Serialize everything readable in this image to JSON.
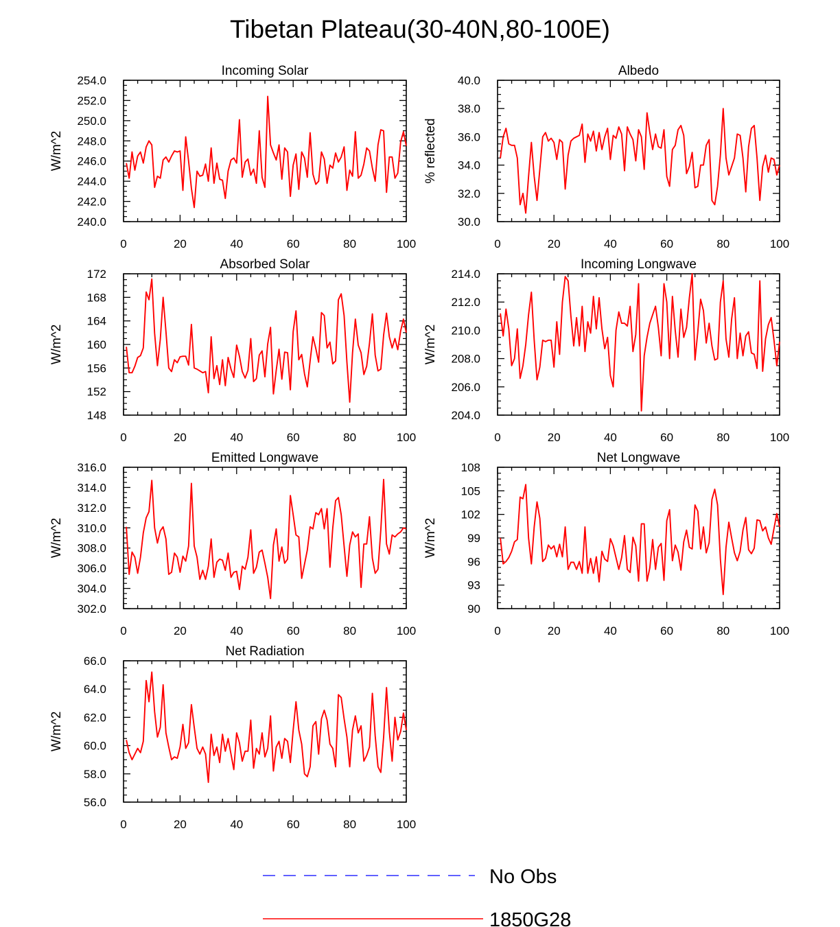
{
  "figure": {
    "title": "Tibetan Plateau(30-40N,80-100E)",
    "colors": {
      "model": "#ff0000",
      "obs": "#0000ff",
      "axis": "#000000"
    }
  },
  "legend": [
    {
      "label": "No Obs",
      "style": "dashed",
      "color": "#0000ff"
    },
    {
      "label": "1850G28",
      "style": "solid",
      "color": "#ff0000"
    }
  ],
  "chart_data": [
    {
      "type": "line",
      "title": "Incoming Solar",
      "ylabel": "W/m^2",
      "xlim": [
        0,
        100
      ],
      "xticks": [
        "0",
        "20",
        "40",
        "60",
        "80",
        "100"
      ],
      "ylim": [
        240,
        254
      ],
      "yticks": [
        "240.0",
        "242.0",
        "244.0",
        "246.0",
        "248.0",
        "250.0",
        "252.0",
        "254.0"
      ],
      "series": [
        {
          "name": "1850G28",
          "x_start": 1,
          "values": [
            245.8,
            244.3,
            246.9,
            245.1,
            246.5,
            246.9,
            245.8,
            247.4,
            248.0,
            247.6,
            243.4,
            244.5,
            244.3,
            246.1,
            246.4,
            245.9,
            246.5,
            247.0,
            246.9,
            247.0,
            243.1,
            248.4,
            246.0,
            243.3,
            241.4,
            245.0,
            244.5,
            244.6,
            245.7,
            244.0,
            247.3,
            243.8,
            245.8,
            244.2,
            244.1,
            242.3,
            245.0,
            246.1,
            246.3,
            245.8,
            250.1,
            244.4,
            245.9,
            246.2,
            244.6,
            245.2,
            243.8,
            249.0,
            244.4,
            243.4,
            252.4,
            247.6,
            246.8,
            246.1,
            247.6,
            244.2,
            247.3,
            246.9,
            242.5,
            245.6,
            246.7,
            243.2,
            246.9,
            246.3,
            244.4,
            248.8,
            244.7,
            243.7,
            244.0,
            246.9,
            246.2,
            243.8,
            245.6,
            245.3,
            246.8,
            245.9,
            246.4,
            247.4,
            243.1,
            245.1,
            244.5,
            248.9,
            244.3,
            244.6,
            245.7,
            247.3,
            247.0,
            245.3,
            244.0,
            247.6,
            249.1,
            249.0,
            242.9,
            246.4,
            246.4,
            244.3,
            244.8,
            247.9,
            248.9,
            247.5
          ]
        }
      ]
    },
    {
      "type": "line",
      "title": "Albedo",
      "ylabel": "% reflected",
      "xlim": [
        0,
        100
      ],
      "xticks": [
        "0",
        "20",
        "40",
        "60",
        "80",
        "100"
      ],
      "ylim": [
        30,
        40
      ],
      "yticks": [
        "30.0",
        "32.0",
        "34.0",
        "36.0",
        "38.0",
        "40.0"
      ],
      "series": [
        {
          "name": "1850G28",
          "x_start": 1,
          "values": [
            34.5,
            36.0,
            36.6,
            35.5,
            35.4,
            35.4,
            34.5,
            31.2,
            32.0,
            30.6,
            33.2,
            35.6,
            33.2,
            31.5,
            33.7,
            36.0,
            36.3,
            35.7,
            35.9,
            35.6,
            34.4,
            35.8,
            35.6,
            32.3,
            34.7,
            35.7,
            35.9,
            36.0,
            36.1,
            36.9,
            34.2,
            36.2,
            35.7,
            36.4,
            35.0,
            36.3,
            35.1,
            36.0,
            36.6,
            34.4,
            36.1,
            35.9,
            36.7,
            36.2,
            33.6,
            36.7,
            36.2,
            35.8,
            34.3,
            36.5,
            36.0,
            33.7,
            37.7,
            36.3,
            35.1,
            36.2,
            35.3,
            35.2,
            36.5,
            33.2,
            32.5,
            35.1,
            35.4,
            36.5,
            36.8,
            36.1,
            33.4,
            33.9,
            34.9,
            32.4,
            32.5,
            34.0,
            34.0,
            35.4,
            35.8,
            31.5,
            31.2,
            32.5,
            34.7,
            38.0,
            34.5,
            33.3,
            33.9,
            34.5,
            36.2,
            36.1,
            34.5,
            32.1,
            35.3,
            36.6,
            36.8,
            34.5,
            31.5,
            33.9,
            34.7,
            33.5,
            34.5,
            34.4,
            33.3,
            34.0
          ]
        }
      ]
    },
    {
      "type": "line",
      "title": "Absorbed Solar",
      "ylabel": "W/m^2",
      "xlim": [
        0,
        100
      ],
      "xticks": [
        "0",
        "20",
        "40",
        "60",
        "80",
        "100"
      ],
      "ylim": [
        148,
        172
      ],
      "yticks": [
        "148",
        "152",
        "156",
        "160",
        "164",
        "168",
        "172"
      ],
      "series": [
        {
          "name": "1850G28",
          "x_start": 1,
          "values": [
            159.6,
            155.2,
            155.2,
            156.3,
            157.8,
            158.1,
            159.4,
            168.9,
            167.6,
            171.1,
            161.9,
            156.4,
            160.9,
            168.0,
            162.2,
            156.0,
            155.4,
            157.4,
            156.9,
            157.9,
            158.0,
            158.0,
            156.5,
            163.4,
            156.0,
            155.8,
            155.5,
            155.2,
            155.4,
            151.8,
            161.3,
            154.2,
            156.4,
            153.2,
            157.4,
            153.0,
            157.8,
            155.8,
            154.4,
            159.9,
            158.0,
            155.4,
            154.3,
            155.6,
            161.0,
            153.7,
            154.2,
            158.2,
            158.9,
            154.5,
            160.1,
            162.9,
            151.6,
            155.6,
            159.2,
            154.1,
            158.7,
            158.6,
            152.3,
            162.2,
            165.7,
            157.4,
            158.3,
            155.0,
            152.8,
            157.2,
            161.3,
            159.3,
            157.0,
            165.4,
            164.9,
            159.4,
            160.4,
            156.7,
            157.2,
            167.6,
            168.6,
            164.9,
            157.0,
            150.2,
            158.6,
            164.3,
            159.9,
            158.6,
            154.9,
            156.3,
            160.2,
            165.2,
            158.2,
            155.5,
            155.8,
            161.6,
            165.3,
            161.3,
            159.4,
            161.0,
            159.1,
            162.3,
            164.3,
            162.0
          ]
        }
      ]
    },
    {
      "type": "line",
      "title": "Incoming Longwave",
      "ylabel": "W/m^2",
      "xlim": [
        0,
        100
      ],
      "xticks": [
        "0",
        "20",
        "40",
        "60",
        "80",
        "100"
      ],
      "ylim": [
        204,
        214
      ],
      "yticks": [
        "204.0",
        "206.0",
        "208.0",
        "210.0",
        "212.0",
        "214.0"
      ],
      "series": [
        {
          "name": "1850G28",
          "x_start": 1,
          "values": [
            211.2,
            209.6,
            211.5,
            210.1,
            207.5,
            208.0,
            210.1,
            206.6,
            207.5,
            209.0,
            211.1,
            212.7,
            209.3,
            206.5,
            207.4,
            209.3,
            209.2,
            209.3,
            209.3,
            207.4,
            210.6,
            208.3,
            212.0,
            213.8,
            213.5,
            211.0,
            208.9,
            210.9,
            208.9,
            211.7,
            208.5,
            210.6,
            209.8,
            212.4,
            210.1,
            212.3,
            210.1,
            208.7,
            209.5,
            206.8,
            206.0,
            210.0,
            211.3,
            210.5,
            210.5,
            210.3,
            211.7,
            208.5,
            209.7,
            213.3,
            204.3,
            208.2,
            209.5,
            210.5,
            211.1,
            211.7,
            210.2,
            208.2,
            213.3,
            212.0,
            208.0,
            212.4,
            210.0,
            208.1,
            211.5,
            209.5,
            210.2,
            212.3,
            214.0,
            207.9,
            209.9,
            212.2,
            211.4,
            209.1,
            210.5,
            208.9,
            207.9,
            208.0,
            212.0,
            213.5,
            209.4,
            208.1,
            210.8,
            212.3,
            208.0,
            209.8,
            208.2,
            209.6,
            209.9,
            208.4,
            208.3,
            207.3,
            213.5,
            207.1,
            209.4,
            210.4,
            210.9,
            209.3,
            207.5,
            209.2
          ]
        }
      ]
    },
    {
      "type": "line",
      "title": "Emitted Longwave",
      "ylabel": "W/m^2",
      "xlim": [
        0,
        100
      ],
      "xticks": [
        "0",
        "20",
        "40",
        "60",
        "80",
        "100"
      ],
      "ylim": [
        302,
        316
      ],
      "yticks": [
        "302.0",
        "304.0",
        "306.0",
        "308.0",
        "310.0",
        "312.0",
        "314.0",
        "316.0"
      ],
      "series": [
        {
          "name": "1850G28",
          "x_start": 1,
          "values": [
            310.1,
            305.4,
            307.6,
            307.1,
            305.5,
            307.1,
            309.5,
            311.0,
            311.6,
            314.7,
            310.0,
            308.5,
            309.7,
            310.1,
            308.9,
            305.4,
            305.6,
            307.5,
            307.1,
            305.6,
            307.2,
            306.7,
            308.2,
            314.4,
            308.2,
            307.1,
            304.9,
            305.8,
            304.9,
            306.2,
            308.9,
            305.1,
            306.6,
            306.9,
            306.8,
            305.8,
            307.5,
            305.1,
            305.6,
            305.7,
            303.9,
            306.2,
            305.9,
            307.1,
            309.8,
            305.5,
            306.1,
            307.6,
            307.8,
            306.5,
            305.1,
            303.0,
            308.3,
            309.9,
            306.7,
            308.1,
            306.5,
            306.9,
            313.2,
            311.3,
            309.3,
            309.1,
            305.0,
            306.4,
            307.8,
            310.1,
            309.9,
            311.5,
            311.3,
            311.9,
            309.9,
            311.9,
            306.1,
            310.0,
            312.7,
            313.0,
            311.3,
            308.2,
            305.2,
            308.3,
            309.6,
            309.1,
            309.4,
            304.1,
            308.4,
            308.4,
            311.1,
            307.0,
            305.5,
            305.9,
            309.8,
            314.8,
            308.4,
            307.4,
            309.3,
            309.1,
            309.4,
            309.6,
            310.0,
            309.9
          ]
        }
      ]
    },
    {
      "type": "line",
      "title": "Net Longwave",
      "ylabel": "W/m^2",
      "xlim": [
        0,
        100
      ],
      "xticks": [
        "0",
        "20",
        "40",
        "60",
        "80",
        "100"
      ],
      "ylim": [
        90,
        108
      ],
      "yticks": [
        "90",
        "93",
        "96",
        "99",
        "102",
        "105",
        "108"
      ],
      "series": [
        {
          "name": "1850G28",
          "x_start": 1,
          "values": [
            99.0,
            95.7,
            96.0,
            96.5,
            97.3,
            98.5,
            98.8,
            104.2,
            104.0,
            105.8,
            99.0,
            95.7,
            100.4,
            103.6,
            101.5,
            96.0,
            96.4,
            98.1,
            97.6,
            98.0,
            96.6,
            98.2,
            96.6,
            100.4,
            95.0,
            95.9,
            95.9,
            95.0,
            96.0,
            94.5,
            100.4,
            94.5,
            96.4,
            94.5,
            96.6,
            93.4,
            97.3,
            96.3,
            96.0,
            98.9,
            98.0,
            96.5,
            95.0,
            96.5,
            99.3,
            95.0,
            94.6,
            99.1,
            98.0,
            93.5,
            100.8,
            100.8,
            93.5,
            95.2,
            98.8,
            95.0,
            97.8,
            98.3,
            93.6,
            101.2,
            102.6,
            96.1,
            98.1,
            97.2,
            94.9,
            98.5,
            100.0,
            97.8,
            97.6,
            103.2,
            102.4,
            97.6,
            100.4,
            97.1,
            98.4,
            103.9,
            105.2,
            103.2,
            96.3,
            91.8,
            97.8,
            101.0,
            99.0,
            97.1,
            96.1,
            97.3,
            100.0,
            101.6,
            97.5,
            97.0,
            97.7,
            101.3,
            101.2,
            99.9,
            100.4,
            99.0,
            98.2,
            100.2,
            102.1,
            100.4
          ]
        }
      ]
    },
    {
      "type": "line",
      "title": "Net Radiation",
      "ylabel": "W/m^2",
      "xlim": [
        0,
        100
      ],
      "xticks": [
        "0",
        "20",
        "40",
        "60",
        "80",
        "100"
      ],
      "ylim": [
        56,
        66
      ],
      "yticks": [
        "56.0",
        "58.0",
        "60.0",
        "62.0",
        "64.0",
        "66.0"
      ],
      "series": [
        {
          "name": "1850G28",
          "x_start": 1,
          "values": [
            60.4,
            59.5,
            59.0,
            59.4,
            59.8,
            59.5,
            60.3,
            64.6,
            63.1,
            65.2,
            62.4,
            60.6,
            61.3,
            64.3,
            60.9,
            59.9,
            59.0,
            59.2,
            59.1,
            59.9,
            61.5,
            59.8,
            60.2,
            62.9,
            61.3,
            59.8,
            59.4,
            59.9,
            59.4,
            57.4,
            60.8,
            59.3,
            59.9,
            58.8,
            60.8,
            59.6,
            60.5,
            59.4,
            58.3,
            60.9,
            60.2,
            58.9,
            59.6,
            59.6,
            61.8,
            58.4,
            59.8,
            59.4,
            60.9,
            59.2,
            59.8,
            62.1,
            58.2,
            59.9,
            60.3,
            59.1,
            60.5,
            60.3,
            58.8,
            61.1,
            63.1,
            61.1,
            60.1,
            58.0,
            57.8,
            58.5,
            61.4,
            61.7,
            59.4,
            61.9,
            62.5,
            61.8,
            60.1,
            59.8,
            58.5,
            63.6,
            63.4,
            61.9,
            60.6,
            58.5,
            61.1,
            62.1,
            60.9,
            61.4,
            58.9,
            59.3,
            59.9,
            63.7,
            60.7,
            58.5,
            58.1,
            60.6,
            64.1,
            61.0,
            58.9,
            62.0,
            60.4,
            61.0,
            62.3,
            61.1
          ]
        }
      ]
    }
  ]
}
